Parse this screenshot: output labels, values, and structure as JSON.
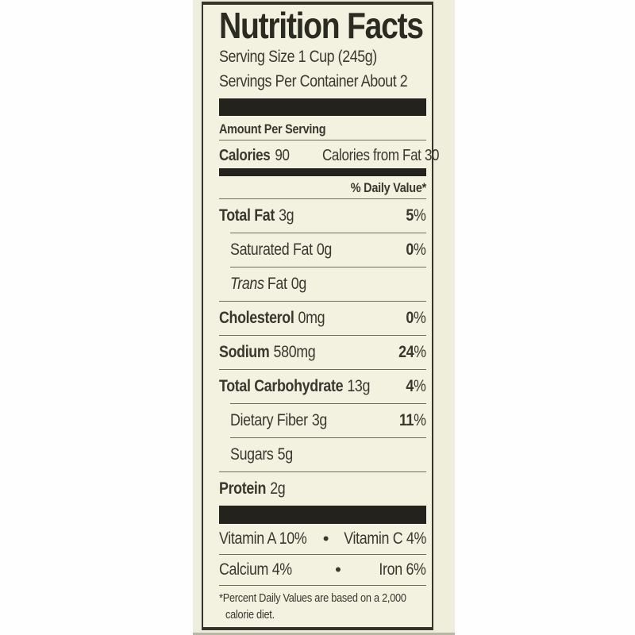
{
  "colors": {
    "page_background": "#fefefe",
    "photo_strip_background": "#efeddc",
    "label_background": "#f3f1e0",
    "ink": "#3a382e",
    "separator_bar": "#24221c"
  },
  "label": {
    "title": "Nutrition Facts",
    "serving_size": "Serving Size 1 Cup (245g)",
    "servings_per_container": "Servings Per Container About 2",
    "amount_per_serving": "Amount Per Serving",
    "calories": {
      "label": "Calories",
      "value": "90",
      "from_fat": "Calories from Fat 30"
    },
    "daily_value_header": "% Daily Value*",
    "percent_sign": "%",
    "nutrients": [
      {
        "name": "Total Fat",
        "amount": "3g",
        "dv": "5"
      },
      {
        "name": "Saturated Fat",
        "amount": "0g",
        "dv": "0"
      },
      {
        "name": "Trans",
        "name_suffix": "Fat",
        "amount": "0g",
        "dv": ""
      },
      {
        "name": "Cholesterol",
        "amount": "0mg",
        "dv": "0"
      },
      {
        "name": "Sodium",
        "amount": "580mg",
        "dv": "24"
      },
      {
        "name": "Total Carbohydrate",
        "amount": "13g",
        "dv": "4"
      },
      {
        "name": "Dietary Fiber",
        "amount": "3g",
        "dv": "11"
      },
      {
        "name": "Sugars",
        "amount": "5g",
        "dv": ""
      },
      {
        "name": "Protein",
        "amount": "2g",
        "dv": ""
      }
    ],
    "micronutrients": [
      {
        "left": "Vitamin A 10%",
        "bullet": "•",
        "right": "Vitamin C 4%"
      },
      {
        "left": "Calcium 4%",
        "bullet": "•",
        "right": "Iron 6%"
      }
    ],
    "footnote_line1": "*Percent Daily Values are based on a 2,000",
    "footnote_line2": "calorie diet."
  }
}
